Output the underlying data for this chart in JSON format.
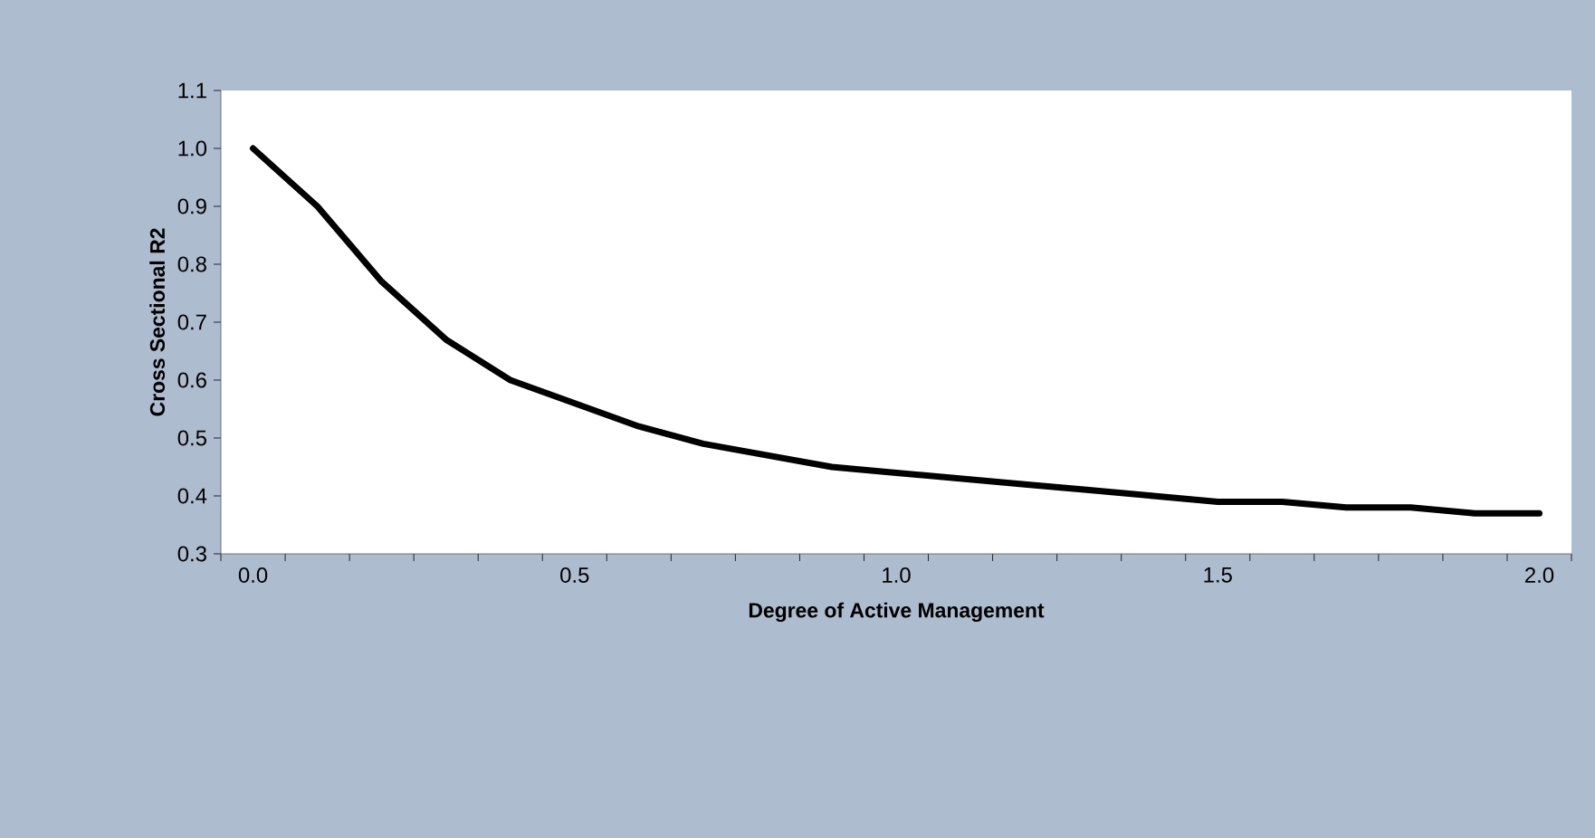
{
  "chart_data": {
    "type": "line",
    "xlabel": "Degree of Active Management",
    "ylabel": "Cross Sectional R2",
    "x": [
      0.0,
      0.1,
      0.2,
      0.3,
      0.4,
      0.5,
      0.6,
      0.7,
      0.8,
      0.9,
      1.0,
      1.1,
      1.2,
      1.3,
      1.4,
      1.5,
      1.6,
      1.7,
      1.8,
      1.9,
      2.0
    ],
    "series": [
      {
        "color": "#000000",
        "values": [
          1.0,
          0.9,
          0.77,
          0.67,
          0.6,
          0.56,
          0.52,
          0.49,
          0.47,
          0.45,
          0.44,
          0.43,
          0.42,
          0.41,
          0.4,
          0.39,
          0.39,
          0.38,
          0.38,
          0.37,
          0.37
        ]
      }
    ],
    "xlim": [
      -0.05,
      2.05
    ],
    "xticks": [
      {
        "value": 0.0,
        "label": "0.0"
      },
      {
        "value": 0.5,
        "label": "0.5"
      },
      {
        "value": 1.0,
        "label": "1.0"
      },
      {
        "value": 1.5,
        "label": "1.5"
      },
      {
        "value": 2.0,
        "label": "2.0"
      },
      {
        "value": -0.05,
        "label": null
      },
      {
        "value": 0.05,
        "label": null
      },
      {
        "value": 0.15,
        "label": null
      },
      {
        "value": 0.25,
        "label": null
      },
      {
        "value": 0.35,
        "label": null
      },
      {
        "value": 0.45,
        "label": null
      },
      {
        "value": 0.55,
        "label": null
      },
      {
        "value": 0.65,
        "label": null
      },
      {
        "value": 0.75,
        "label": null
      },
      {
        "value": 0.85,
        "label": null
      },
      {
        "value": 0.95,
        "label": null
      },
      {
        "value": 1.05,
        "label": null
      },
      {
        "value": 1.15,
        "label": null
      },
      {
        "value": 1.25,
        "label": null
      },
      {
        "value": 1.35,
        "label": null
      },
      {
        "value": 1.45,
        "label": null
      },
      {
        "value": 1.55,
        "label": null
      },
      {
        "value": 1.65,
        "label": null
      },
      {
        "value": 1.75,
        "label": null
      },
      {
        "value": 1.85,
        "label": null
      },
      {
        "value": 1.95,
        "label": null
      },
      {
        "value": 2.05,
        "label": null
      }
    ],
    "ylim": [
      0.3,
      1.1
    ],
    "yticks": [
      0.3,
      0.4,
      0.5,
      0.6,
      0.7,
      0.8,
      0.9,
      {
        "value": 1.0,
        "label": "1.0"
      },
      1.1
    ],
    "grid": false,
    "marker": "none",
    "line_style": "solid"
  }
}
